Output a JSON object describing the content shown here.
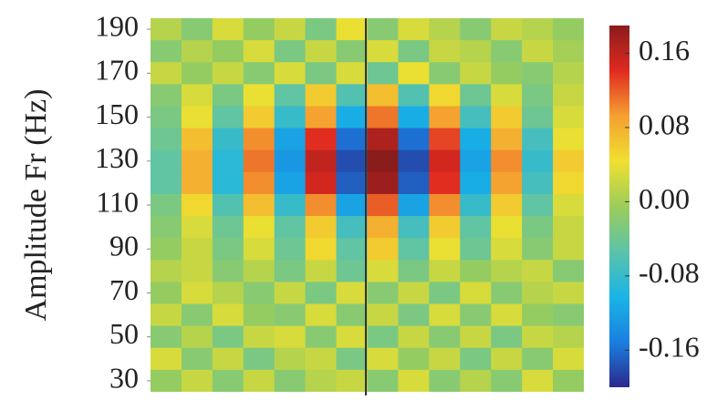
{
  "chart_data": {
    "type": "heatmap",
    "y_label": "Amplitude Fr (Hz)",
    "categories": [
      null,
      null,
      null,
      null,
      null,
      null,
      null,
      null,
      null,
      null,
      null,
      null,
      null,
      null
    ],
    "y": [
      190,
      180,
      170,
      160,
      150,
      140,
      130,
      120,
      110,
      100,
      90,
      80,
      70,
      60,
      50,
      40,
      30
    ],
    "ylim": [
      25,
      195
    ],
    "yticks": [
      190,
      170,
      150,
      130,
      110,
      90,
      70,
      50,
      30
    ],
    "z": [
      [
        0.01,
        -0.02,
        0.03,
        -0.01,
        0.02,
        -0.03,
        0.04,
        -0.02,
        0.03,
        0.01,
        -0.02,
        0.02,
        0.01,
        -0.01
      ],
      [
        -0.02,
        0.01,
        -0.01,
        0.03,
        -0.03,
        0.02,
        -0.02,
        0.03,
        -0.03,
        0.02,
        0.01,
        -0.02,
        0.02,
        0.0
      ],
      [
        0.02,
        -0.01,
        0.02,
        -0.02,
        0.03,
        -0.03,
        0.03,
        -0.04,
        0.04,
        -0.02,
        0.02,
        -0.01,
        -0.02,
        0.01
      ],
      [
        -0.02,
        0.03,
        -0.03,
        0.04,
        -0.05,
        0.06,
        -0.06,
        0.07,
        -0.06,
        0.05,
        -0.04,
        0.03,
        -0.03,
        0.02
      ],
      [
        -0.03,
        0.04,
        -0.05,
        0.06,
        -0.08,
        0.09,
        -0.11,
        0.11,
        -0.11,
        0.09,
        -0.07,
        0.06,
        -0.04,
        0.03
      ],
      [
        -0.04,
        0.07,
        -0.08,
        0.1,
        -0.12,
        0.14,
        -0.16,
        0.17,
        -0.16,
        0.13,
        -0.11,
        0.08,
        -0.07,
        0.04
      ],
      [
        -0.05,
        0.08,
        -0.09,
        0.11,
        -0.13,
        0.16,
        -0.18,
        0.19,
        -0.18,
        0.15,
        -0.12,
        0.1,
        -0.08,
        0.06
      ],
      [
        -0.05,
        0.08,
        -0.09,
        0.1,
        -0.12,
        0.15,
        -0.17,
        0.18,
        -0.17,
        0.14,
        -0.11,
        0.09,
        -0.07,
        0.05
      ],
      [
        -0.03,
        0.05,
        -0.06,
        0.07,
        -0.08,
        0.1,
        -0.12,
        0.12,
        -0.12,
        0.1,
        -0.08,
        0.06,
        -0.05,
        0.03
      ],
      [
        -0.02,
        0.03,
        -0.04,
        0.04,
        -0.05,
        0.06,
        -0.07,
        0.08,
        -0.07,
        0.06,
        -0.05,
        0.04,
        -0.03,
        0.02
      ],
      [
        -0.01,
        0.02,
        -0.03,
        0.03,
        -0.04,
        0.05,
        -0.05,
        0.06,
        -0.05,
        0.04,
        -0.04,
        0.03,
        -0.02,
        0.02
      ],
      [
        0.01,
        0.02,
        -0.02,
        0.01,
        -0.03,
        0.02,
        -0.04,
        0.03,
        -0.03,
        0.02,
        -0.01,
        0.01,
        0.02,
        -0.02
      ],
      [
        -0.01,
        0.03,
        0.01,
        -0.02,
        0.02,
        -0.03,
        0.03,
        -0.02,
        0.02,
        -0.03,
        0.03,
        -0.02,
        0.01,
        0.02
      ],
      [
        0.02,
        -0.02,
        0.03,
        -0.01,
        -0.02,
        0.03,
        -0.02,
        0.02,
        -0.03,
        0.03,
        -0.02,
        0.03,
        -0.01,
        -0.02
      ],
      [
        -0.02,
        0.01,
        -0.03,
        0.02,
        0.03,
        -0.02,
        0.03,
        -0.03,
        0.02,
        -0.02,
        0.02,
        -0.03,
        0.02,
        0.01
      ],
      [
        0.03,
        -0.02,
        0.02,
        -0.03,
        0.01,
        0.02,
        -0.03,
        0.03,
        -0.01,
        0.02,
        -0.03,
        0.02,
        -0.02,
        0.03
      ],
      [
        -0.01,
        0.02,
        -0.02,
        0.02,
        -0.02,
        0.01,
        0.02,
        -0.02,
        0.03,
        -0.02,
        0.01,
        -0.02,
        0.03,
        -0.01
      ]
    ],
    "clim": [
      -0.2,
      0.19
    ],
    "cticks": [
      0.16,
      0.08,
      {
        "value": 0,
        "label": "0.00"
      },
      -0.08,
      -0.16
    ],
    "colormap": [
      "#2a2a8c",
      "#1a7fe0",
      "#19b5e6",
      "#5cc3a8",
      "#9ccd5a",
      "#f0e030",
      "#f5a030",
      "#e02a20",
      "#8a1c1c"
    ]
  }
}
